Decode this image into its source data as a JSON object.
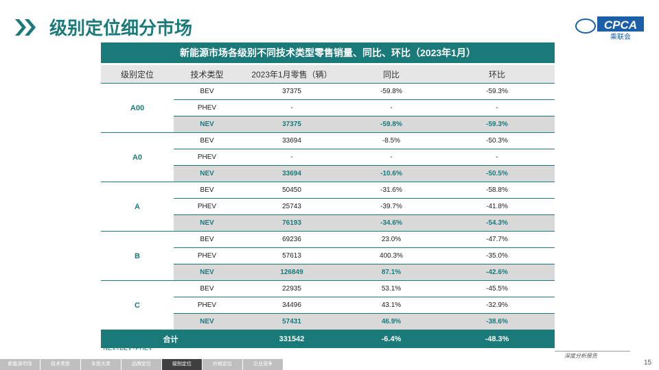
{
  "header": {
    "title": "级别定位细分市场",
    "logo_text": "CPCA",
    "logo_sub": "乘联会"
  },
  "table": {
    "title": "新能源市场各级别不同技术类型零售销量、同比、环比（2023年1月）",
    "columns": [
      "级别定位",
      "技术类型",
      "2023年1月零售（辆）",
      "同比",
      "环比"
    ],
    "groups": [
      {
        "level": "A00",
        "rows": [
          [
            "BEV",
            "37375",
            "-59.8%",
            "-59.3%"
          ],
          [
            "PHEV",
            "-",
            "-",
            "-"
          ],
          [
            "NEV",
            "37375",
            "-59.8%",
            "-59.3%"
          ]
        ]
      },
      {
        "level": "A0",
        "rows": [
          [
            "BEV",
            "33694",
            "-8.5%",
            "-50.3%"
          ],
          [
            "PHEV",
            "-",
            "-",
            "-"
          ],
          [
            "NEV",
            "33694",
            "-10.6%",
            "-50.5%"
          ]
        ]
      },
      {
        "level": "A",
        "rows": [
          [
            "BEV",
            "50450",
            "-31.6%",
            "-58.8%"
          ],
          [
            "PHEV",
            "25743",
            "-39.7%",
            "-41.8%"
          ],
          [
            "NEV",
            "76193",
            "-34.6%",
            "-54.3%"
          ]
        ]
      },
      {
        "level": "B",
        "rows": [
          [
            "BEV",
            "69236",
            "23.0%",
            "-47.7%"
          ],
          [
            "PHEV",
            "57613",
            "400.3%",
            "-35.0%"
          ],
          [
            "NEV",
            "126849",
            "87.1%",
            "-42.6%"
          ]
        ]
      },
      {
        "level": "C",
        "rows": [
          [
            "BEV",
            "22935",
            "53.1%",
            "-45.5%"
          ],
          [
            "PHEV",
            "34496",
            "43.1%",
            "-32.9%"
          ],
          [
            "NEV",
            "57431",
            "46.9%",
            "-38.6%"
          ]
        ]
      }
    ],
    "total": [
      "合计",
      "331542",
      "-6.4%",
      "-48.3%"
    ],
    "footnote": "*NEV=BEV+PHEV"
  },
  "footer": {
    "tabs": [
      "新能源市场",
      "技术类型",
      "车型大类",
      "品牌定位",
      "级别定位",
      "价格定位",
      "企业竞争"
    ],
    "active_tab": 4,
    "report_label": "深度分析报告",
    "page_number": "15"
  }
}
